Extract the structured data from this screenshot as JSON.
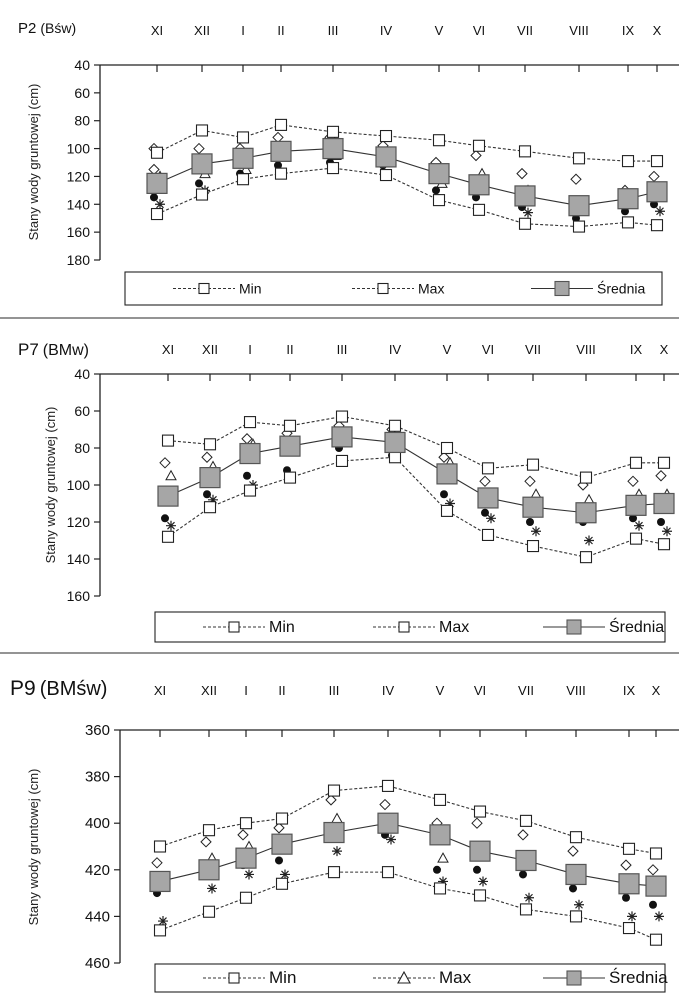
{
  "chart_data": [
    {
      "type": "line",
      "title": "P2",
      "subtitle": "(Bśw)",
      "ylabel": "Stany wody gruntowej (cm)",
      "xlabel": "",
      "categories": [
        "XI",
        "XII",
        "I",
        "II",
        "III",
        "IV",
        "V",
        "VI",
        "VII",
        "VIII",
        "IX",
        "X"
      ],
      "yticks": [
        40,
        60,
        80,
        100,
        120,
        140,
        160,
        180
      ],
      "ylim": [
        40,
        180
      ],
      "y_inverted": true,
      "grid": false,
      "legend_position": "bottom",
      "legend_labels": [
        "Min",
        "Max",
        "Średnia"
      ],
      "series": [
        {
          "name": "Min",
          "values": [
            103,
            87,
            92,
            83,
            88,
            91,
            94,
            98,
            102,
            107,
            109,
            109
          ]
        },
        {
          "name": "Max",
          "values": [
            147,
            133,
            122,
            118,
            114,
            119,
            137,
            144,
            154,
            156,
            153,
            155
          ]
        },
        {
          "name": "Średnia",
          "values": [
            125,
            111,
            107,
            102,
            100,
            106,
            118,
            126,
            134,
            141,
            136,
            131
          ]
        }
      ],
      "scatter": [
        [
          [
            100,
            120,
            135,
            140,
            115
          ],
          [
            100,
            118,
            125,
            130
          ],
          [
            100,
            115,
            118
          ],
          [
            92,
            105,
            112
          ],
          [
            92,
            105,
            110
          ],
          [
            98,
            108,
            112
          ],
          [
            110,
            125,
            130
          ],
          [
            105,
            118,
            135
          ],
          [
            118,
            130,
            142,
            146
          ],
          [
            122,
            140,
            150
          ],
          [
            130,
            140,
            145
          ],
          [
            120,
            135,
            140,
            145
          ]
        ]
      ],
      "colors": {
        "average_fill": "#a6a6a6",
        "average_stroke": "#555555",
        "line": "#333333"
      }
    },
    {
      "type": "line",
      "title": "P7",
      "subtitle": "(BMw)",
      "ylabel": "Stany wody gruntowej (cm)",
      "xlabel": "",
      "categories": [
        "XI",
        "XII",
        "I",
        "II",
        "III",
        "IV",
        "V",
        "VI",
        "VII",
        "VIII",
        "IX",
        "X"
      ],
      "yticks": [
        40,
        60,
        80,
        100,
        120,
        140,
        160
      ],
      "ylim": [
        40,
        160
      ],
      "y_inverted": true,
      "grid": false,
      "legend_position": "bottom",
      "legend_labels": [
        "Min",
        "Max",
        "Średnia"
      ],
      "series": [
        {
          "name": "Min",
          "values": [
            76,
            78,
            66,
            68,
            63,
            68,
            80,
            91,
            89,
            96,
            88,
            88
          ]
        },
        {
          "name": "Max",
          "values": [
            128,
            112,
            103,
            96,
            87,
            85,
            114,
            127,
            133,
            139,
            129,
            132
          ]
        },
        {
          "name": "Średnia",
          "values": [
            106,
            96,
            83,
            79,
            74,
            77,
            94,
            107,
            112,
            115,
            111,
            110
          ]
        }
      ],
      "scatter": [
        [
          [
            88,
            95,
            118,
            122
          ],
          [
            85,
            90,
            105,
            108
          ],
          [
            75,
            78,
            95,
            100
          ],
          [
            72,
            78,
            92
          ],
          [
            68,
            75,
            80
          ],
          [
            70,
            80,
            84
          ],
          [
            85,
            88,
            105,
            110
          ],
          [
            98,
            105,
            115,
            118
          ],
          [
            98,
            105,
            120,
            125
          ],
          [
            100,
            108,
            120,
            130
          ],
          [
            98,
            105,
            118,
            122
          ],
          [
            95,
            105,
            120,
            125
          ]
        ]
      ],
      "colors": {
        "average_fill": "#a6a6a6",
        "average_stroke": "#555555",
        "line": "#333333"
      }
    },
    {
      "type": "line",
      "title": "P9",
      "subtitle": "(BMśw)",
      "ylabel": "Stany wody gruntowej (cm)",
      "xlabel": "",
      "categories": [
        "XI",
        "XII",
        "I",
        "II",
        "III",
        "IV",
        "V",
        "VI",
        "VII",
        "VIII",
        "IX",
        "X"
      ],
      "yticks": [
        360,
        380,
        400,
        420,
        440,
        460
      ],
      "ylim": [
        360,
        460
      ],
      "y_inverted": true,
      "grid": false,
      "legend_position": "bottom",
      "legend_labels": [
        "Min",
        "Max",
        "Średnia"
      ],
      "series": [
        {
          "name": "Min",
          "values": [
            410,
            403,
            400,
            398,
            386,
            384,
            390,
            395,
            399,
            406,
            411,
            413
          ]
        },
        {
          "name": "Max",
          "values": [
            446,
            438,
            432,
            426,
            421,
            421,
            428,
            431,
            437,
            440,
            445,
            450
          ]
        },
        {
          "name": "Średnia",
          "values": [
            425,
            420,
            415,
            409,
            404,
            400,
            405,
            412,
            416,
            422,
            426,
            427
          ]
        }
      ],
      "scatter": [
        [
          [
            417,
            425,
            430,
            442
          ],
          [
            408,
            415,
            420,
            428
          ],
          [
            405,
            410,
            418,
            422
          ],
          [
            402,
            410,
            416,
            422
          ],
          [
            390,
            398,
            405,
            412
          ],
          [
            392,
            400,
            405,
            407
          ],
          [
            400,
            415,
            420,
            425
          ],
          [
            400,
            410,
            420,
            425
          ],
          [
            405,
            415,
            422,
            432
          ],
          [
            412,
            420,
            428,
            435
          ],
          [
            418,
            425,
            432,
            440
          ],
          [
            420,
            428,
            435,
            440
          ]
        ]
      ],
      "colors": {
        "average_fill": "#a6a6a6",
        "average_stroke": "#555555",
        "line": "#333333"
      }
    }
  ]
}
